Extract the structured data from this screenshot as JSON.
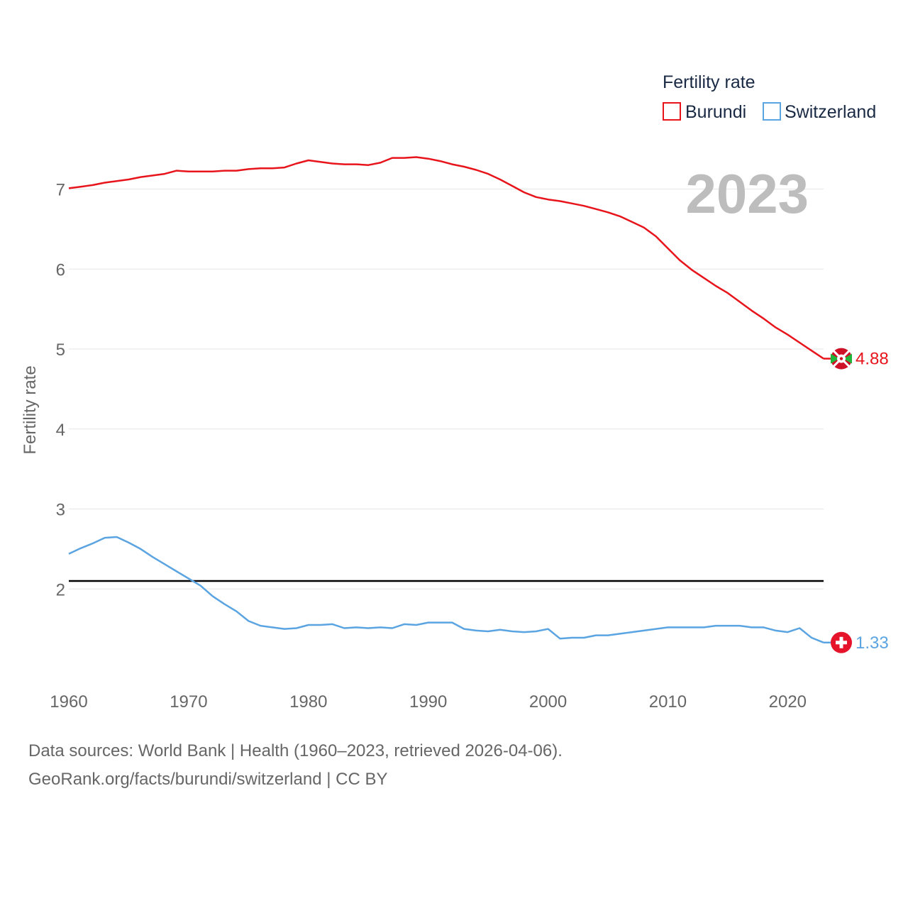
{
  "chart_data": {
    "type": "line",
    "ylabel": "Fertility rate",
    "xlabel": "",
    "legend_title": "Fertility rate",
    "legend_position": "top-right",
    "year_label": "2023",
    "xlim": [
      1960,
      2023
    ],
    "ylim": [
      1.0,
      7.75
    ],
    "x_ticks": [
      1960,
      1970,
      1980,
      1990,
      2000,
      2010,
      2020
    ],
    "y_ticks": [
      2,
      3,
      4,
      5,
      6,
      7
    ],
    "reference_line": {
      "value": 2.1,
      "color": "#000000"
    },
    "x": [
      1960,
      1961,
      1962,
      1963,
      1964,
      1965,
      1966,
      1967,
      1968,
      1969,
      1970,
      1971,
      1972,
      1973,
      1974,
      1975,
      1976,
      1977,
      1978,
      1979,
      1980,
      1981,
      1982,
      1983,
      1984,
      1985,
      1986,
      1987,
      1988,
      1989,
      1990,
      1991,
      1992,
      1993,
      1994,
      1995,
      1996,
      1997,
      1998,
      1999,
      2000,
      2001,
      2002,
      2003,
      2004,
      2005,
      2006,
      2007,
      2008,
      2009,
      2010,
      2011,
      2012,
      2013,
      2014,
      2015,
      2016,
      2017,
      2018,
      2019,
      2020,
      2021,
      2022,
      2023
    ],
    "series": [
      {
        "name": "Burundi",
        "color": "#e8141b",
        "end_label": "4.88",
        "values": [
          7.01,
          7.03,
          7.05,
          7.08,
          7.1,
          7.12,
          7.15,
          7.17,
          7.19,
          7.23,
          7.22,
          7.22,
          7.22,
          7.23,
          7.23,
          7.25,
          7.26,
          7.26,
          7.27,
          7.32,
          7.36,
          7.34,
          7.32,
          7.31,
          7.31,
          7.3,
          7.33,
          7.39,
          7.39,
          7.4,
          7.38,
          7.35,
          7.31,
          7.28,
          7.24,
          7.19,
          7.12,
          7.04,
          6.96,
          6.9,
          6.87,
          6.85,
          6.82,
          6.79,
          6.75,
          6.71,
          6.66,
          6.59,
          6.52,
          6.41,
          6.26,
          6.11,
          5.99,
          5.89,
          5.79,
          5.7,
          5.59,
          5.48,
          5.38,
          5.27,
          5.18,
          5.08,
          4.98,
          4.88
        ]
      },
      {
        "name": "Switzerland",
        "color": "#5ba4e2",
        "end_label": "1.33",
        "values": [
          2.44,
          2.51,
          2.57,
          2.64,
          2.65,
          2.58,
          2.5,
          2.4,
          2.31,
          2.22,
          2.13,
          2.04,
          1.91,
          1.81,
          1.72,
          1.6,
          1.54,
          1.52,
          1.5,
          1.51,
          1.55,
          1.55,
          1.56,
          1.51,
          1.52,
          1.51,
          1.52,
          1.51,
          1.56,
          1.55,
          1.58,
          1.58,
          1.58,
          1.5,
          1.48,
          1.47,
          1.49,
          1.47,
          1.46,
          1.47,
          1.5,
          1.38,
          1.39,
          1.39,
          1.42,
          1.42,
          1.44,
          1.46,
          1.48,
          1.5,
          1.52,
          1.52,
          1.52,
          1.52,
          1.54,
          1.54,
          1.54,
          1.52,
          1.52,
          1.48,
          1.46,
          1.51,
          1.39,
          1.33
        ]
      }
    ]
  },
  "footer": {
    "line1": "Data sources: World Bank | Health (1960–2023, retrieved 2026-04-06).",
    "line2": "GeoRank.org/facts/burundi/switzerland | CC BY"
  }
}
